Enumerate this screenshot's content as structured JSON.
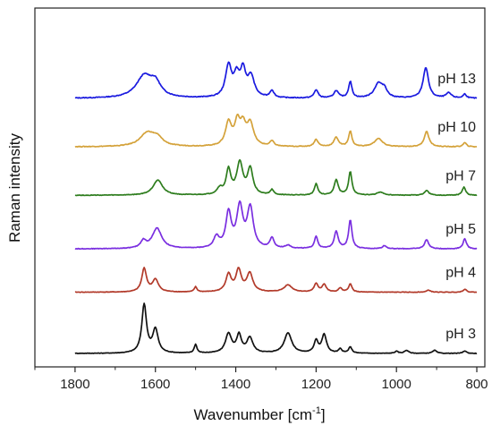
{
  "chart_data": {
    "type": "line",
    "title": "",
    "xlabel": "Wavenumber [cm",
    "xlabel_sup": "-1",
    "xlabel_end": "]",
    "ylabel": "Raman intensity",
    "x_reversed": true,
    "xlim": [
      1900,
      780
    ],
    "xticks": [
      {
        "value": 1800,
        "label": "1800"
      },
      {
        "value": 1600,
        "label": "1600"
      },
      {
        "value": 1400,
        "label": "1400"
      },
      {
        "value": 1200,
        "label": "1200"
      },
      {
        "value": 1000,
        "label": "1000"
      },
      {
        "value": 800,
        "label": "800"
      }
    ],
    "y_ticks_shown": false,
    "grid": false,
    "legend": "none (series labelled in-plot, right side)",
    "series": [
      {
        "name": "pH 13",
        "label": "pH 13",
        "color": "#1a1adf",
        "offset": 5.0,
        "noise": 0.008,
        "peaks": [
          [
            1628,
            0.42,
            24
          ],
          [
            1600,
            0.25,
            16
          ],
          [
            1418,
            0.62,
            9
          ],
          [
            1398,
            0.38,
            8
          ],
          [
            1382,
            0.5,
            8
          ],
          [
            1362,
            0.4,
            10
          ],
          [
            1310,
            0.14,
            6
          ],
          [
            1200,
            0.16,
            6
          ],
          [
            1150,
            0.14,
            7
          ],
          [
            1115,
            0.32,
            5
          ],
          [
            1045,
            0.28,
            12
          ],
          [
            1030,
            0.15,
            8
          ],
          [
            927,
            0.6,
            8
          ],
          [
            870,
            0.1,
            8
          ],
          [
            830,
            0.08,
            5
          ]
        ]
      },
      {
        "name": "pH 10",
        "label": "pH 10",
        "color": "#d4a23a",
        "offset": 4.05,
        "noise": 0.007,
        "peaks": [
          [
            1620,
            0.26,
            22
          ],
          [
            1595,
            0.14,
            16
          ],
          [
            1418,
            0.46,
            9
          ],
          [
            1396,
            0.44,
            8
          ],
          [
            1382,
            0.36,
            8
          ],
          [
            1364,
            0.44,
            10
          ],
          [
            1310,
            0.1,
            6
          ],
          [
            1200,
            0.14,
            6
          ],
          [
            1150,
            0.18,
            7
          ],
          [
            1115,
            0.3,
            5
          ],
          [
            1045,
            0.16,
            12
          ],
          [
            925,
            0.3,
            7
          ],
          [
            830,
            0.08,
            5
          ]
        ]
      },
      {
        "name": "pH 7",
        "label": "pH 7",
        "color": "#2e7d1e",
        "offset": 3.1,
        "noise": 0.006,
        "peaks": [
          [
            1594,
            0.3,
            14
          ],
          [
            1440,
            0.12,
            8
          ],
          [
            1418,
            0.48,
            7
          ],
          [
            1390,
            0.62,
            9
          ],
          [
            1364,
            0.5,
            8
          ],
          [
            1310,
            0.1,
            5
          ],
          [
            1200,
            0.22,
            5
          ],
          [
            1150,
            0.3,
            6
          ],
          [
            1115,
            0.46,
            5
          ],
          [
            1040,
            0.06,
            10
          ],
          [
            925,
            0.1,
            6
          ],
          [
            832,
            0.16,
            5
          ]
        ]
      },
      {
        "name": "pH 5",
        "label": "pH 5",
        "color": "#7a2fe0",
        "offset": 2.05,
        "noise": 0.006,
        "peaks": [
          [
            1630,
            0.14,
            8
          ],
          [
            1596,
            0.4,
            14
          ],
          [
            1448,
            0.22,
            8
          ],
          [
            1418,
            0.68,
            8
          ],
          [
            1390,
            0.8,
            9
          ],
          [
            1364,
            0.78,
            9
          ],
          [
            1310,
            0.2,
            6
          ],
          [
            1270,
            0.06,
            8
          ],
          [
            1200,
            0.24,
            5
          ],
          [
            1150,
            0.34,
            6
          ],
          [
            1115,
            0.56,
            5
          ],
          [
            1030,
            0.06,
            6
          ],
          [
            925,
            0.18,
            6
          ],
          [
            830,
            0.2,
            5
          ]
        ]
      },
      {
        "name": "pH 4",
        "label": "pH 4",
        "color": "#b23a2a",
        "offset": 1.2,
        "noise": 0.005,
        "peaks": [
          [
            1628,
            0.46,
            7
          ],
          [
            1600,
            0.24,
            9
          ],
          [
            1500,
            0.1,
            4
          ],
          [
            1418,
            0.34,
            8
          ],
          [
            1393,
            0.42,
            8
          ],
          [
            1365,
            0.36,
            9
          ],
          [
            1270,
            0.14,
            12
          ],
          [
            1200,
            0.16,
            6
          ],
          [
            1180,
            0.15,
            6
          ],
          [
            1140,
            0.08,
            5
          ],
          [
            1115,
            0.16,
            5
          ],
          [
            920,
            0.04,
            6
          ],
          [
            830,
            0.06,
            5
          ]
        ]
      },
      {
        "name": "pH 3",
        "label": "pH 3",
        "color": "#111111",
        "offset": 0.0,
        "noise": 0.005,
        "peaks": [
          [
            1628,
            0.95,
            7
          ],
          [
            1600,
            0.46,
            8
          ],
          [
            1500,
            0.17,
            4
          ],
          [
            1418,
            0.38,
            9
          ],
          [
            1392,
            0.34,
            7
          ],
          [
            1365,
            0.3,
            9
          ],
          [
            1270,
            0.4,
            11
          ],
          [
            1200,
            0.24,
            6
          ],
          [
            1180,
            0.36,
            7
          ],
          [
            1140,
            0.08,
            5
          ],
          [
            1115,
            0.12,
            5
          ],
          [
            1000,
            0.04,
            5
          ],
          [
            975,
            0.06,
            6
          ],
          [
            905,
            0.06,
            6
          ],
          [
            830,
            0.05,
            5
          ]
        ]
      }
    ]
  }
}
